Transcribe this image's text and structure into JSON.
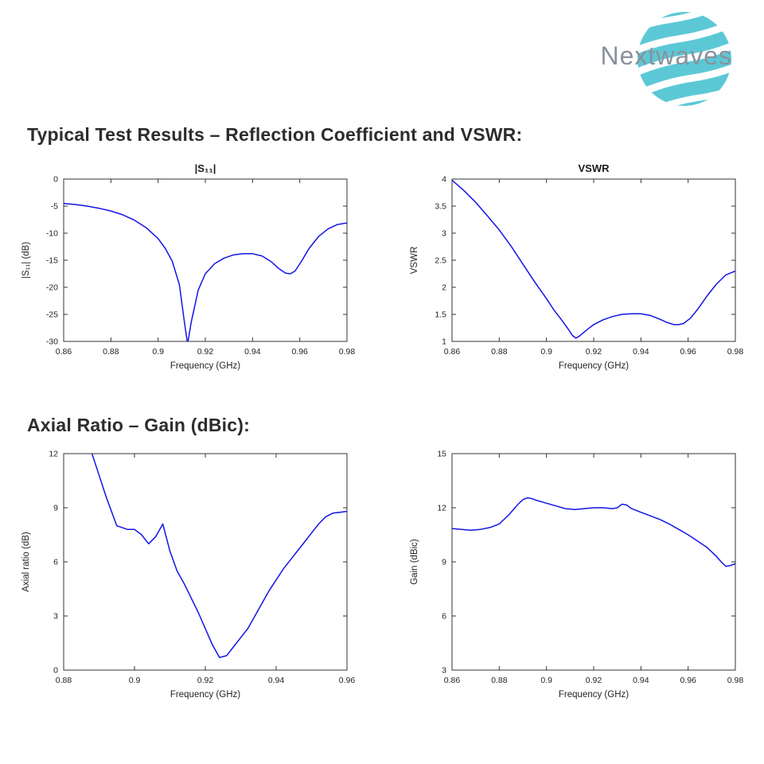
{
  "logo": {
    "text": "Nextwaves",
    "brand_color": "#5cc8d6",
    "text_color": "#8a919c"
  },
  "headings": {
    "section1": "Typical Test Results – Reflection Coefficient and VSWR:",
    "section2": "Axial Ratio – Gain (dBic):"
  },
  "colors": {
    "line": "#1414e8",
    "axis": "#333333",
    "tick_text": "#242424"
  },
  "chart_data": [
    {
      "type": "line",
      "title": "|S₁₁|",
      "xlabel": "Frequency (GHz)",
      "ylabel": "|S₁₁| (dB)",
      "xlim": [
        0.86,
        0.98
      ],
      "ylim": [
        -30,
        0
      ],
      "xticks": [
        "0.86",
        "0.88",
        "0.9",
        "0.92",
        "0.94",
        "0.96",
        "0.98"
      ],
      "yticks": [
        "-30",
        "-25",
        "-20",
        "-15",
        "-10",
        "-5",
        "0"
      ],
      "legend": null,
      "grid": false,
      "x": [
        0.86,
        0.865,
        0.87,
        0.875,
        0.88,
        0.885,
        0.89,
        0.895,
        0.9,
        0.903,
        0.906,
        0.909,
        0.911,
        0.9125,
        0.914,
        0.917,
        0.92,
        0.924,
        0.928,
        0.932,
        0.936,
        0.94,
        0.944,
        0.948,
        0.951,
        0.954,
        0.956,
        0.958,
        0.961,
        0.964,
        0.968,
        0.972,
        0.976,
        0.98
      ],
      "y": [
        -4.5,
        -4.7,
        -5.0,
        -5.4,
        -5.9,
        -6.6,
        -7.6,
        -9.0,
        -11.0,
        -12.8,
        -15.2,
        -19.5,
        -26.0,
        -30.5,
        -26.5,
        -20.5,
        -17.5,
        -15.6,
        -14.6,
        -14.0,
        -13.8,
        -13.8,
        -14.2,
        -15.3,
        -16.5,
        -17.4,
        -17.5,
        -17.0,
        -15.0,
        -12.8,
        -10.6,
        -9.2,
        -8.4,
        -8.1
      ]
    },
    {
      "type": "line",
      "title": "VSWR",
      "xlabel": "Frequency (GHz)",
      "ylabel": "VSWR",
      "xlim": [
        0.86,
        0.98
      ],
      "ylim": [
        1,
        4
      ],
      "xticks": [
        "0.86",
        "0.88",
        "0.9",
        "0.92",
        "0.94",
        "0.96",
        "0.98"
      ],
      "yticks": [
        "1",
        "1.5",
        "2",
        "2.5",
        "3",
        "3.5",
        "4"
      ],
      "legend": null,
      "grid": false,
      "x": [
        0.86,
        0.865,
        0.87,
        0.875,
        0.88,
        0.885,
        0.89,
        0.895,
        0.9,
        0.903,
        0.906,
        0.909,
        0.911,
        0.9125,
        0.914,
        0.917,
        0.92,
        0.924,
        0.928,
        0.932,
        0.936,
        0.94,
        0.944,
        0.948,
        0.951,
        0.954,
        0.956,
        0.958,
        0.961,
        0.964,
        0.968,
        0.972,
        0.976,
        0.98
      ],
      "y": [
        3.98,
        3.79,
        3.57,
        3.32,
        3.06,
        2.76,
        2.43,
        2.1,
        1.79,
        1.59,
        1.42,
        1.24,
        1.11,
        1.06,
        1.1,
        1.21,
        1.31,
        1.4,
        1.46,
        1.5,
        1.51,
        1.51,
        1.48,
        1.41,
        1.35,
        1.31,
        1.31,
        1.33,
        1.43,
        1.59,
        1.84,
        2.06,
        2.23,
        2.3
      ]
    },
    {
      "type": "line",
      "title": "",
      "xlabel": "Frequency (GHz)",
      "ylabel": "Axial ratio (dB)",
      "xlim": [
        0.88,
        0.96
      ],
      "ylim": [
        0,
        12
      ],
      "xticks": [
        "0.88",
        "0.9",
        "0.92",
        "0.94",
        "0.96"
      ],
      "yticks": [
        "0",
        "3",
        "6",
        "9",
        "12"
      ],
      "legend": null,
      "grid": false,
      "x": [
        0.888,
        0.89,
        0.892,
        0.895,
        0.898,
        0.9,
        0.902,
        0.904,
        0.906,
        0.908,
        0.91,
        0.912,
        0.914,
        0.916,
        0.918,
        0.92,
        0.922,
        0.924,
        0.926,
        0.928,
        0.93,
        0.932,
        0.934,
        0.936,
        0.938,
        0.94,
        0.942,
        0.944,
        0.946,
        0.948,
        0.95,
        0.952,
        0.954,
        0.956,
        0.958,
        0.96
      ],
      "y": [
        12.0,
        10.8,
        9.6,
        8.0,
        7.8,
        7.8,
        7.5,
        7.0,
        7.4,
        8.1,
        6.6,
        5.5,
        4.8,
        4.0,
        3.2,
        2.3,
        1.4,
        0.7,
        0.8,
        1.3,
        1.8,
        2.3,
        3.0,
        3.7,
        4.4,
        5.0,
        5.6,
        6.1,
        6.6,
        7.1,
        7.6,
        8.1,
        8.5,
        8.7,
        8.75,
        8.8
      ]
    },
    {
      "type": "line",
      "title": "",
      "xlabel": "Frequency (GHz)",
      "ylabel": "Gain (dBic)",
      "xlim": [
        0.86,
        0.98
      ],
      "ylim": [
        3,
        15
      ],
      "xticks": [
        "0.86",
        "0.88",
        "0.9",
        "0.92",
        "0.94",
        "0.96",
        "0.98"
      ],
      "yticks": [
        "3",
        "6",
        "9",
        "12",
        "15"
      ],
      "legend": null,
      "grid": false,
      "x": [
        0.86,
        0.864,
        0.868,
        0.872,
        0.876,
        0.88,
        0.884,
        0.888,
        0.89,
        0.892,
        0.894,
        0.896,
        0.9,
        0.904,
        0.908,
        0.912,
        0.916,
        0.92,
        0.924,
        0.928,
        0.93,
        0.932,
        0.934,
        0.936,
        0.94,
        0.944,
        0.948,
        0.952,
        0.956,
        0.96,
        0.964,
        0.968,
        0.972,
        0.974,
        0.976,
        0.978,
        0.98
      ],
      "y": [
        10.85,
        10.8,
        10.75,
        10.8,
        10.9,
        11.1,
        11.6,
        12.2,
        12.45,
        12.55,
        12.5,
        12.4,
        12.25,
        12.1,
        11.95,
        11.9,
        11.95,
        12.0,
        12.0,
        11.95,
        12.0,
        12.2,
        12.15,
        11.95,
        11.75,
        11.55,
        11.35,
        11.1,
        10.8,
        10.5,
        10.15,
        9.8,
        9.3,
        9.0,
        8.75,
        8.8,
        8.9
      ]
    }
  ]
}
